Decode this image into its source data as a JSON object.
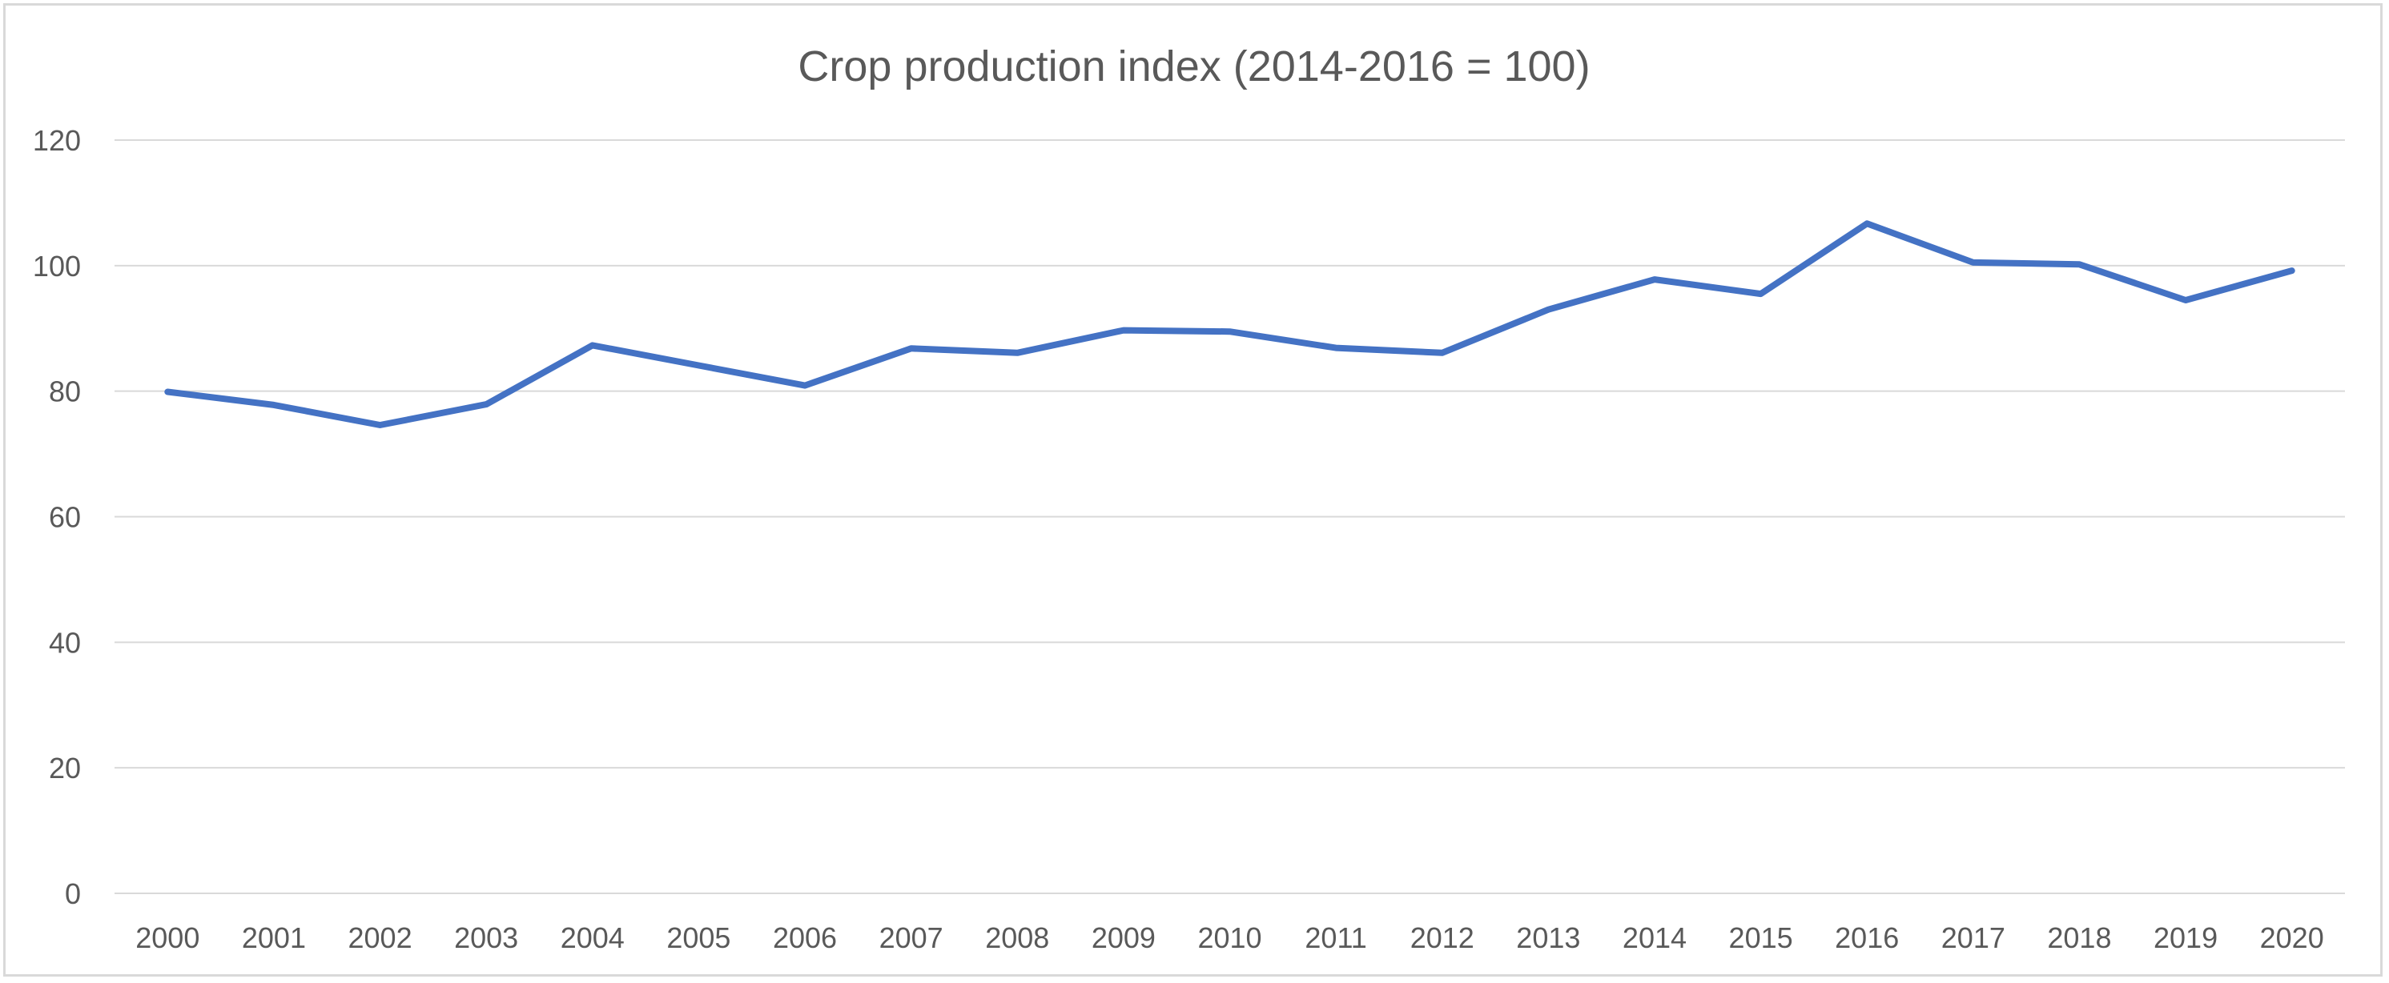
{
  "chart_data": {
    "type": "line",
    "title": "Crop production index (2014-2016 = 100)",
    "xlabel": "",
    "ylabel": "",
    "categories": [
      "2000",
      "2001",
      "2002",
      "2003",
      "2004",
      "2005",
      "2006",
      "2007",
      "2008",
      "2009",
      "2010",
      "2011",
      "2012",
      "2013",
      "2014",
      "2015",
      "2016",
      "2017",
      "2018",
      "2019",
      "2020"
    ],
    "series": [
      {
        "values": [
          79.9,
          77.8,
          74.6,
          77.9,
          87.3,
          84.1,
          80.9,
          86.8,
          86.1,
          89.7,
          89.5,
          86.9,
          86.1,
          93.0,
          97.8,
          95.5,
          106.7,
          100.5,
          100.2,
          94.5,
          99.2
        ],
        "color": "#4472c4"
      }
    ],
    "ylim": [
      0,
      120
    ],
    "yticks": [
      0,
      20,
      40,
      60,
      80,
      100,
      120
    ],
    "grid": true,
    "legend": "none"
  }
}
